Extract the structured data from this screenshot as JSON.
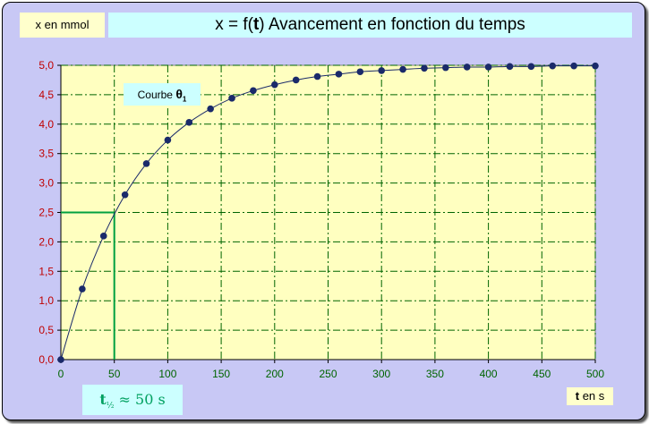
{
  "header": {
    "y_unit_label": "x en mmol",
    "title_left": "x = f(",
    "title_var": "t",
    "title_right": ") Avancement en fonction du temps"
  },
  "annotations": {
    "curve_label": "Courbe ",
    "curve_symbol": "θ",
    "curve_subscript": "1",
    "t_half_symbol": "t",
    "t_half_subscript": "½",
    "t_half_text": " ≈ 50 s",
    "x_unit_var": "t",
    "x_unit_text": " en s"
  },
  "colors": {
    "frame": "#c8c8f5",
    "plot_area": "#ffffc0",
    "grid": "#006400",
    "axis_ticks": "#c00000",
    "markers": "#1a2a6a",
    "curve": "#1a2a6a",
    "half_time_lines": "#00a040"
  },
  "chart_data": {
    "type": "scatter",
    "x_range": [
      0,
      500
    ],
    "y_range": [
      0,
      5.0
    ],
    "x_ticks": [
      "0",
      "50",
      "100",
      "150",
      "200",
      "250",
      "300",
      "350",
      "400",
      "450",
      "500"
    ],
    "y_ticks": [
      "0,0",
      "0,5",
      "1,0",
      "1,5",
      "2,0",
      "2,5",
      "3,0",
      "3,5",
      "4,0",
      "4,5",
      "5,0"
    ],
    "grid": true,
    "series": [
      {
        "x": [
          0,
          20,
          40,
          60,
          80,
          100,
          120,
          140,
          160,
          180,
          200,
          220,
          240,
          260,
          280,
          300,
          320,
          340,
          360,
          380,
          400,
          420,
          440,
          460,
          480,
          500
        ],
        "y": [
          0.0,
          1.2,
          2.1,
          2.8,
          3.33,
          3.73,
          4.03,
          4.26,
          4.44,
          4.57,
          4.67,
          4.75,
          4.81,
          4.85,
          4.89,
          4.91,
          4.93,
          4.95,
          4.96,
          4.97,
          4.97,
          4.98,
          4.98,
          4.99,
          4.99,
          4.99
        ]
      }
    ],
    "reference_point": {
      "x": 50,
      "y": 2.5
    }
  }
}
